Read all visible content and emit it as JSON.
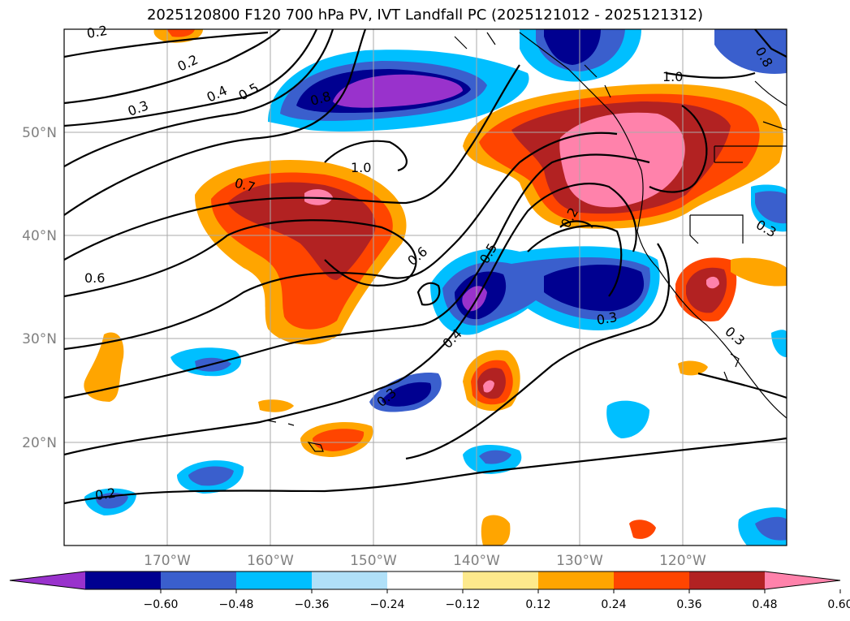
{
  "title": "2025120800 F120 700 hPa PV, IVT Landfall PC (2025121012 - 2025121312)",
  "map": {
    "lat_labels": [
      "50°N",
      "40°N",
      "30°N",
      "20°N"
    ],
    "lon_labels": [
      "170°W",
      "160°W",
      "150°W",
      "140°W",
      "130°W",
      "120°W"
    ],
    "contour_labels": [
      "0.2",
      "0.2",
      "0.3",
      "0.4",
      "0.5",
      "0.8",
      "0.7",
      "1.0",
      "0.6",
      "0.6",
      "0.5",
      "0.4",
      "0.3",
      "0.2",
      "0.3",
      "0.2",
      "1.0",
      "0.3",
      "0.8",
      "0.3"
    ],
    "colors": {
      "neg_extreme": "#9932cc",
      "neg_060": "#000090",
      "neg_048": "#3a5fcd",
      "neg_036": "#00bfff",
      "neg_024": "#b0e0f8",
      "pos_012": "#fde98c",
      "pos_024": "#ffa500",
      "pos_036": "#ff4500",
      "pos_048": "#b22222",
      "pos_060": "#ff82ab"
    }
  },
  "colorbar": {
    "ticks": [
      "−0.60",
      "−0.48",
      "−0.36",
      "−0.24",
      "−0.12",
      "0.12",
      "0.24",
      "0.36",
      "0.48",
      "0.60"
    ],
    "colors": [
      "#9932cc",
      "#000090",
      "#3a5fcd",
      "#00bfff",
      "#b0e0f8",
      "#ffffff",
      "#fde98c",
      "#ffa500",
      "#ff4500",
      "#b22222",
      "#ff82ab"
    ]
  }
}
